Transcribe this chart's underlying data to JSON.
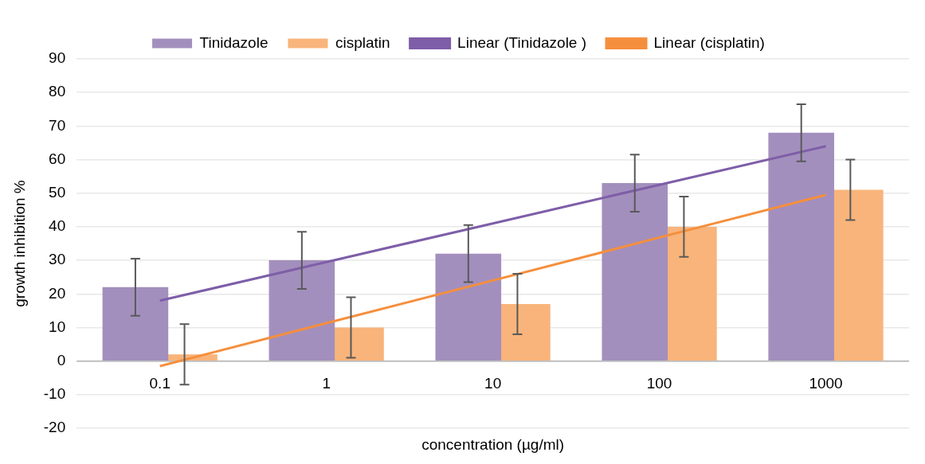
{
  "chart_data": {
    "type": "bar",
    "xlabel": "concentration (µg/ml)",
    "ylabel": "growth inhibition %",
    "categories": [
      "0.1",
      "1",
      "10",
      "100",
      "1000"
    ],
    "series": [
      {
        "name": "Tinidazole",
        "color": "#a38fbd",
        "values": [
          22,
          30,
          32,
          53,
          68
        ],
        "errors": [
          8.5,
          8.5,
          8.5,
          8.5,
          8.5
        ]
      },
      {
        "name": "cisplatin",
        "color": "#f8b47b",
        "values": [
          2,
          10,
          17,
          40,
          51
        ],
        "errors": [
          9,
          9,
          9,
          9,
          9
        ]
      },
      {
        "name": "Linear (Tinidazole )",
        "type": "line",
        "color": "#7e5ea8",
        "values": [
          18,
          29.5,
          41,
          52.5,
          64
        ]
      },
      {
        "name": "Linear (cisplatin)",
        "type": "line",
        "color": "#f58f3c",
        "values": [
          -1.5,
          11.3,
          24,
          36.8,
          49.5
        ]
      }
    ],
    "ylim": [
      -20,
      90
    ],
    "yticks": [
      -20,
      -10,
      0,
      10,
      20,
      30,
      40,
      50,
      60,
      70,
      80,
      90
    ],
    "grid": "y",
    "legend": "top",
    "marker": "none"
  }
}
